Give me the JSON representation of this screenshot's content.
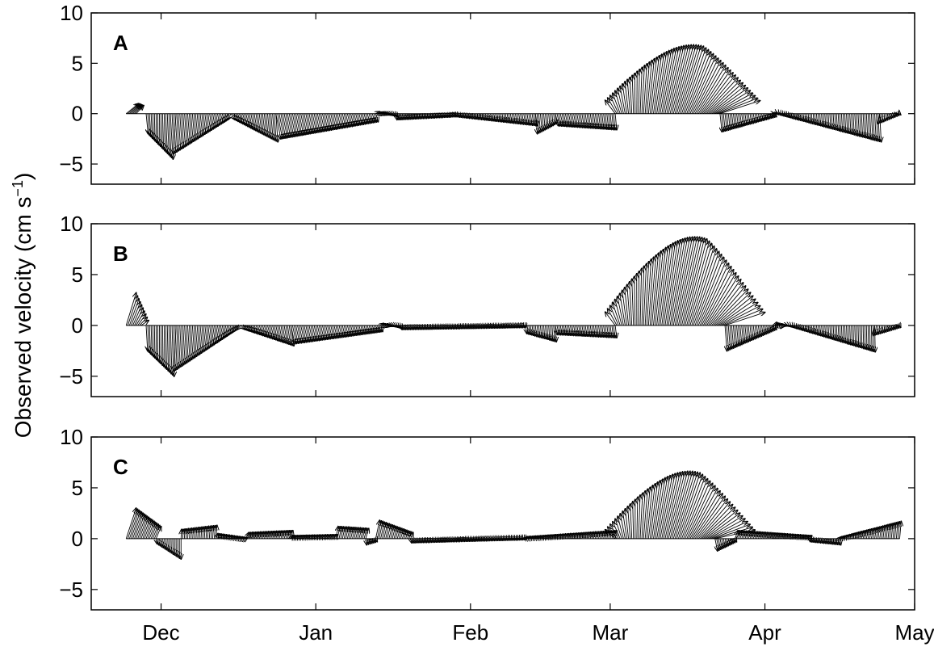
{
  "chart_data": {
    "type": "vector-stick",
    "ylabel": "Observed velocity (cm s",
    "ylabel_unit_exp": "−1",
    "ylabel_close": ")",
    "xlim": [
      "2006-11-17",
      "2007-05-01"
    ],
    "x_ticks": [
      {
        "date": "2006-12-01",
        "label": "Dec"
      },
      {
        "date": "2007-01-01",
        "label": "Jan"
      },
      {
        "date": "2007-02-01",
        "label": "Feb"
      },
      {
        "date": "2007-03-01",
        "label": "Mar"
      },
      {
        "date": "2007-04-01",
        "label": "Apr"
      },
      {
        "date": "2007-05-01",
        "label": "May"
      }
    ],
    "panels": [
      {
        "label": "A",
        "ylim": [
          -7,
          10
        ],
        "y_ticks": [
          10,
          5,
          0,
          -5
        ],
        "y_tick_labels": [
          "10",
          "5",
          "0",
          "−5"
        ],
        "segments": [
          {
            "start": "2006-11-24",
            "end": "2006-11-26",
            "u": [
              2.5,
              1.5
            ],
            "v": [
              1.0,
              0.8
            ]
          },
          {
            "start": "2006-11-28",
            "end": "2006-12-04",
            "u": [
              0.4,
              -0.6
            ],
            "v": [
              -2.0,
              -4.5
            ]
          },
          {
            "start": "2006-12-04",
            "end": "2006-12-15",
            "u": [
              -0.5,
              -0.6
            ],
            "v": [
              -4.0,
              -0.6
            ]
          },
          {
            "start": "2006-12-15",
            "end": "2006-12-24",
            "u": [
              0.8,
              0.4
            ],
            "v": [
              -0.6,
              -2.8
            ]
          },
          {
            "start": "2006-12-24",
            "end": "2007-01-13",
            "u": [
              1.0,
              0.5
            ],
            "v": [
              -2.5,
              -0.8
            ]
          },
          {
            "start": "2007-01-13",
            "end": "2007-01-17",
            "u": [
              0.8,
              0.5
            ],
            "v": [
              0.2,
              -0.3
            ]
          },
          {
            "start": "2007-01-17",
            "end": "2007-01-29",
            "u": [
              0.3,
              0.1
            ],
            "v": [
              -0.6,
              -0.3
            ]
          },
          {
            "start": "2007-01-29",
            "end": "2007-02-14",
            "u": [
              0.1,
              0.4
            ],
            "v": [
              -0.3,
              -1.2
            ]
          },
          {
            "start": "2007-02-14",
            "end": "2007-02-18",
            "u": [
              0.4,
              0.2
            ],
            "v": [
              -2.0,
              -1.0
            ]
          },
          {
            "start": "2007-02-18",
            "end": "2007-03-02",
            "u": [
              0.6,
              0.3
            ],
            "v": [
              -1.2,
              -1.6
            ]
          },
          {
            "start": "2007-03-02",
            "end": "2007-03-23",
            "u": [
              -1.0,
              1.2
            ],
            "v": [
              1.5,
              7.2
            ],
            "dir_sweep": [
              -2,
              8
            ]
          },
          {
            "start": "2007-03-23",
            "end": "2007-04-03",
            "u": [
              0.4,
              0.3
            ],
            "v": [
              -1.8,
              -0.3
            ]
          },
          {
            "start": "2007-04-03",
            "end": "2007-04-24",
            "u": [
              0.1,
              0.3
            ],
            "v": [
              0.0,
              -2.8
            ]
          },
          {
            "start": "2007-04-24",
            "end": "2007-04-28",
            "u": [
              -0.3,
              0.2
            ],
            "v": [
              -1.0,
              -0.1
            ]
          }
        ]
      },
      {
        "label": "B",
        "ylim": [
          -7,
          10
        ],
        "y_ticks": [
          10,
          5,
          0,
          -5
        ],
        "y_tick_labels": [
          "10",
          "5",
          "0",
          "−5"
        ],
        "segments": [
          {
            "start": "2006-11-24",
            "end": "2006-11-27",
            "u": [
              2.0,
              1.5
            ],
            "v": [
              3.2,
              0.5
            ]
          },
          {
            "start": "2006-11-28",
            "end": "2006-12-04",
            "u": [
              0.3,
              -0.4
            ],
            "v": [
              -2.5,
              -5.0
            ]
          },
          {
            "start": "2006-12-04",
            "end": "2006-12-17",
            "u": [
              -0.4,
              -0.8
            ],
            "v": [
              -4.5,
              -0.4
            ]
          },
          {
            "start": "2006-12-17",
            "end": "2006-12-27",
            "u": [
              0.8,
              0.6
            ],
            "v": [
              -0.4,
              -2.0
            ]
          },
          {
            "start": "2006-12-27",
            "end": "2007-01-14",
            "u": [
              0.8,
              0.4
            ],
            "v": [
              -1.8,
              -0.6
            ]
          },
          {
            "start": "2007-01-14",
            "end": "2007-01-18",
            "u": [
              0.6,
              0.3
            ],
            "v": [
              0.2,
              -0.3
            ]
          },
          {
            "start": "2007-01-18",
            "end": "2007-02-12",
            "u": [
              0.3,
              0.1
            ],
            "v": [
              -0.4,
              -0.2
            ]
          },
          {
            "start": "2007-02-12",
            "end": "2007-02-18",
            "u": [
              0.3,
              0.2
            ],
            "v": [
              -0.8,
              -1.6
            ]
          },
          {
            "start": "2007-02-18",
            "end": "2007-03-02",
            "u": [
              0.4,
              0.3
            ],
            "v": [
              -0.9,
              -1.2
            ]
          },
          {
            "start": "2007-03-02",
            "end": "2007-03-24",
            "u": [
              -1.0,
              1.2
            ],
            "v": [
              1.5,
              9.2
            ],
            "dir_sweep": [
              -2,
              8
            ]
          },
          {
            "start": "2007-03-24",
            "end": "2007-04-03",
            "u": [
              0.4,
              0.3
            ],
            "v": [
              -2.5,
              -0.4
            ]
          },
          {
            "start": "2007-04-03",
            "end": "2007-04-23",
            "u": [
              0.3,
              0.1
            ],
            "v": [
              0.3,
              -2.6
            ]
          },
          {
            "start": "2007-04-23",
            "end": "2007-04-28",
            "u": [
              -0.3,
              0.2
            ],
            "v": [
              -1.0,
              -0.2
            ]
          }
        ]
      },
      {
        "label": "C",
        "ylim": [
          -7,
          10
        ],
        "y_ticks": [
          10,
          5,
          0,
          -5
        ],
        "y_tick_labels": [
          "10",
          "5",
          "0",
          "−5"
        ],
        "segments": [
          {
            "start": "2006-11-24",
            "end": "2006-11-30",
            "u": [
              2.0,
              1.0
            ],
            "v": [
              3.0,
              1.2
            ]
          },
          {
            "start": "2006-11-30",
            "end": "2006-12-05",
            "u": [
              0.2,
              0.0
            ],
            "v": [
              -0.5,
              -2.0
            ]
          },
          {
            "start": "2006-12-05",
            "end": "2006-12-12",
            "u": [
              0.1,
              0.2
            ],
            "v": [
              0.9,
              1.3
            ]
          },
          {
            "start": "2006-12-12",
            "end": "2006-12-18",
            "u": [
              0.4,
              0.3
            ],
            "v": [
              0.5,
              0.1
            ]
          },
          {
            "start": "2006-12-18",
            "end": "2006-12-27",
            "u": [
              0.6,
              0.4
            ],
            "v": [
              0.6,
              0.8
            ]
          },
          {
            "start": "2006-12-27",
            "end": "2007-01-05",
            "u": [
              0.4,
              0.3
            ],
            "v": [
              0.3,
              0.4
            ]
          },
          {
            "start": "2007-01-05",
            "end": "2007-01-11",
            "u": [
              0.5,
              0.6
            ],
            "v": [
              1.2,
              1.0
            ]
          },
          {
            "start": "2007-01-11",
            "end": "2007-01-13",
            "u": [
              0.2,
              0.3
            ],
            "v": [
              -0.6,
              -0.3
            ]
          },
          {
            "start": "2007-01-13",
            "end": "2007-01-20",
            "u": [
              0.8,
              0.5
            ],
            "v": [
              1.8,
              0.6
            ]
          },
          {
            "start": "2007-01-20",
            "end": "2007-02-12",
            "u": [
              0.2,
              0.1
            ],
            "v": [
              -0.4,
              -0.1
            ]
          },
          {
            "start": "2007-02-12",
            "end": "2007-03-02",
            "u": [
              0.4,
              0.3
            ],
            "v": [
              0.2,
              0.8
            ]
          },
          {
            "start": "2007-03-02",
            "end": "2007-03-22",
            "u": [
              -1.0,
              1.2
            ],
            "v": [
              1.0,
              7.0
            ],
            "dir_sweep": [
              -2,
              8
            ]
          },
          {
            "start": "2007-03-22",
            "end": "2007-03-26",
            "u": [
              0.5,
              0.3
            ],
            "v": [
              -1.2,
              -0.3
            ]
          },
          {
            "start": "2007-03-26",
            "end": "2007-04-10",
            "u": [
              0.6,
              0.4
            ],
            "v": [
              0.8,
              0.3
            ]
          },
          {
            "start": "2007-04-10",
            "end": "2007-04-16",
            "u": [
              0.1,
              0.2
            ],
            "v": [
              -0.3,
              -0.6
            ]
          },
          {
            "start": "2007-04-16",
            "end": "2007-04-28",
            "u": [
              0.4,
              0.3
            ],
            "v": [
              0.2,
              1.7
            ]
          }
        ]
      }
    ]
  }
}
